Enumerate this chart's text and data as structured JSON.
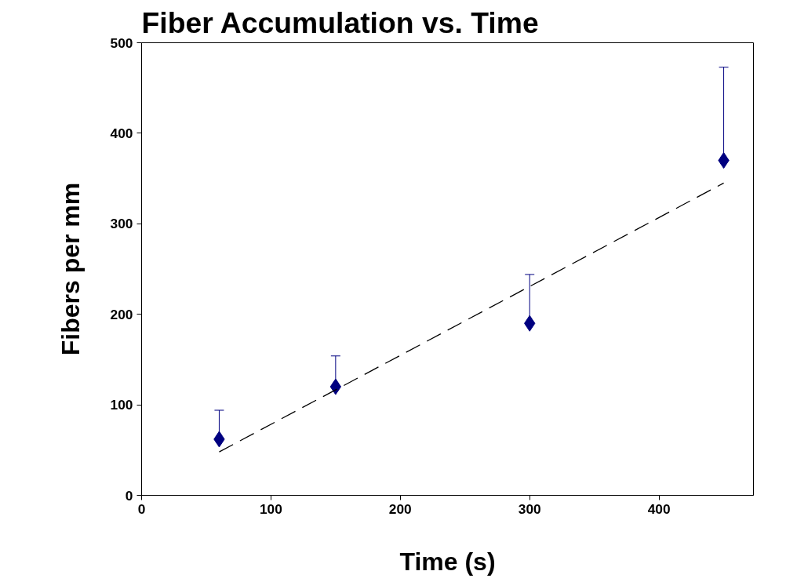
{
  "chart_data": {
    "type": "scatter",
    "title": "Fiber Accumulation vs. Time",
    "xlabel": "Time (s)",
    "ylabel": "Fibers per mm",
    "x": [
      60,
      150,
      300,
      450
    ],
    "series": [
      {
        "color": "#000080",
        "values": [
          62,
          120,
          190,
          370
        ],
        "errors": [
          [
            62,
            94
          ],
          [
            120,
            154
          ],
          [
            190,
            244
          ],
          [
            370,
            473
          ]
        ],
        "marker": "diamond"
      },
      {
        "type": "line",
        "color": "#000000",
        "x": [
          60,
          450
        ],
        "values": [
          48,
          345
        ],
        "line_style": "dashed"
      }
    ],
    "xlim": [
      0,
      473
    ],
    "xticks": [
      0,
      100,
      200,
      300,
      400
    ],
    "ylim": [
      0,
      500
    ],
    "yticks": [
      0,
      100,
      200,
      300,
      400,
      500
    ],
    "grid": false
  }
}
